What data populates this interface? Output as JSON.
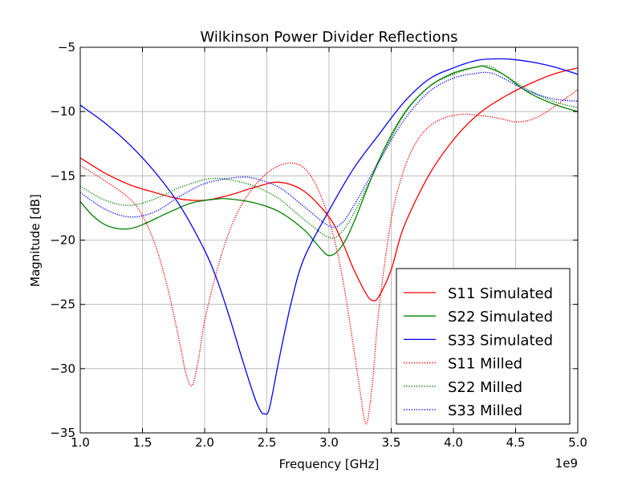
{
  "chart_data": {
    "type": "line",
    "title": "Wilkinson Power Divider Reflections",
    "xlabel": "Frequency [GHz]",
    "ylabel": "Magnitude [dB]",
    "x_multiplier": "1e9",
    "xlim": [
      1.0,
      5.0
    ],
    "ylim": [
      -35,
      -5
    ],
    "x_ticks": [
      1.0,
      1.5,
      2.0,
      2.5,
      3.0,
      3.5,
      4.0,
      4.5,
      5.0
    ],
    "x_tick_labels": [
      "1.0",
      "1.5",
      "2.0",
      "2.5",
      "3.0",
      "3.5",
      "4.0",
      "4.5",
      "5.0"
    ],
    "y_ticks": [
      -35,
      -30,
      -25,
      -20,
      -15,
      -10,
      -5
    ],
    "y_tick_labels": [
      "−35",
      "−30",
      "−25",
      "−20",
      "−15",
      "−10",
      "−5"
    ],
    "grid": true,
    "legend_position": "lower-right",
    "series": [
      {
        "name": "S11 Simulated",
        "color": "#ff0000",
        "style": "solid",
        "x": [
          1.0,
          1.2,
          1.4,
          1.6,
          1.8,
          2.0,
          2.2,
          2.4,
          2.6,
          2.8,
          3.0,
          3.1,
          3.2,
          3.3,
          3.35,
          3.4,
          3.5,
          3.6,
          3.8,
          4.0,
          4.2,
          4.4,
          4.6,
          4.8,
          5.0
        ],
        "y": [
          -13.6,
          -14.8,
          -15.7,
          -16.3,
          -16.8,
          -16.9,
          -16.5,
          -15.9,
          -15.5,
          -16.2,
          -18.2,
          -20.0,
          -22.3,
          -24.2,
          -24.7,
          -24.4,
          -22.3,
          -19.0,
          -15.0,
          -12.2,
          -10.2,
          -8.9,
          -7.9,
          -7.1,
          -6.6
        ]
      },
      {
        "name": "S22 Simulated",
        "color": "#008000",
        "style": "solid",
        "x": [
          1.0,
          1.1,
          1.2,
          1.3,
          1.4,
          1.5,
          1.7,
          1.9,
          2.1,
          2.2,
          2.4,
          2.6,
          2.8,
          2.9,
          3.0,
          3.1,
          3.2,
          3.4,
          3.6,
          3.8,
          4.0,
          4.2,
          4.25,
          4.4,
          4.6,
          4.8,
          5.0
        ],
        "y": [
          -17.0,
          -18.1,
          -18.8,
          -19.1,
          -19.1,
          -18.8,
          -17.9,
          -17.1,
          -16.8,
          -16.8,
          -17.1,
          -17.8,
          -19.2,
          -20.3,
          -21.2,
          -20.5,
          -18.6,
          -13.8,
          -10.2,
          -8.1,
          -7.0,
          -6.5,
          -6.5,
          -7.1,
          -8.5,
          -9.4,
          -10.0
        ]
      },
      {
        "name": "S33 Simulated",
        "color": "#0000ff",
        "style": "solid",
        "x": [
          1.0,
          1.2,
          1.4,
          1.6,
          1.8,
          2.0,
          2.1,
          2.2,
          2.3,
          2.4,
          2.45,
          2.48,
          2.52,
          2.6,
          2.7,
          2.8,
          3.0,
          3.2,
          3.4,
          3.6,
          3.8,
          4.0,
          4.2,
          4.4,
          4.6,
          4.8,
          5.0
        ],
        "y": [
          -9.5,
          -10.9,
          -12.6,
          -14.7,
          -17.3,
          -20.8,
          -23.1,
          -26.0,
          -29.2,
          -32.2,
          -33.3,
          -33.5,
          -33.1,
          -29.2,
          -24.7,
          -21.4,
          -17.7,
          -14.4,
          -11.8,
          -9.3,
          -7.5,
          -6.6,
          -6.0,
          -5.9,
          -6.1,
          -6.5,
          -7.1
        ]
      },
      {
        "name": "S11 Milled",
        "color": "#ff0000",
        "style": "dotted",
        "x": [
          1.0,
          1.2,
          1.4,
          1.5,
          1.6,
          1.7,
          1.8,
          1.85,
          1.9,
          1.95,
          2.0,
          2.1,
          2.2,
          2.3,
          2.4,
          2.5,
          2.6,
          2.7,
          2.8,
          2.9,
          3.0,
          3.1,
          3.2,
          3.25,
          3.3,
          3.35,
          3.4,
          3.5,
          3.6,
          3.7,
          3.8,
          3.9,
          4.0,
          4.1,
          4.2,
          4.3,
          4.4,
          4.5,
          4.6,
          4.7,
          4.8,
          4.9,
          5.0
        ],
        "y": [
          -14.2,
          -15.4,
          -16.8,
          -18.1,
          -20.3,
          -23.6,
          -28.0,
          -30.4,
          -31.3,
          -29.3,
          -26.3,
          -22.3,
          -19.3,
          -17.2,
          -15.8,
          -14.8,
          -14.2,
          -14.0,
          -14.4,
          -15.8,
          -18.4,
          -22.5,
          -28.5,
          -31.8,
          -34.3,
          -31.0,
          -25.5,
          -18.4,
          -14.6,
          -12.4,
          -11.2,
          -10.6,
          -10.3,
          -10.2,
          -10.3,
          -10.4,
          -10.6,
          -10.8,
          -10.7,
          -10.3,
          -9.7,
          -9.0,
          -8.3
        ]
      },
      {
        "name": "S22 Milled",
        "color": "#008000",
        "style": "dotted",
        "x": [
          1.0,
          1.2,
          1.4,
          1.6,
          1.8,
          2.0,
          2.1,
          2.2,
          2.4,
          2.6,
          2.8,
          3.0,
          3.1,
          3.2,
          3.4,
          3.6,
          3.8,
          4.0,
          4.2,
          4.3,
          4.4,
          4.6,
          4.8,
          5.0
        ],
        "y": [
          -15.8,
          -16.9,
          -17.3,
          -16.8,
          -15.9,
          -15.3,
          -15.2,
          -15.3,
          -15.8,
          -16.8,
          -18.4,
          -19.8,
          -19.4,
          -17.9,
          -14.0,
          -10.3,
          -8.1,
          -7.1,
          -6.5,
          -6.5,
          -7.1,
          -8.3,
          -9.2,
          -9.7
        ]
      },
      {
        "name": "S33 Milled",
        "color": "#0000ff",
        "style": "dotted",
        "x": [
          1.0,
          1.2,
          1.4,
          1.6,
          1.8,
          2.0,
          2.2,
          2.3,
          2.4,
          2.6,
          2.8,
          3.0,
          3.1,
          3.2,
          3.4,
          3.6,
          3.8,
          4.0,
          4.2,
          4.3,
          4.4,
          4.6,
          4.8,
          5.0
        ],
        "y": [
          -16.3,
          -17.6,
          -18.2,
          -17.8,
          -16.6,
          -15.6,
          -15.2,
          -15.1,
          -15.2,
          -15.9,
          -17.4,
          -18.9,
          -18.7,
          -17.3,
          -13.9,
          -10.7,
          -8.5,
          -7.4,
          -7.0,
          -7.0,
          -7.4,
          -8.4,
          -9.0,
          -9.2
        ]
      }
    ]
  }
}
